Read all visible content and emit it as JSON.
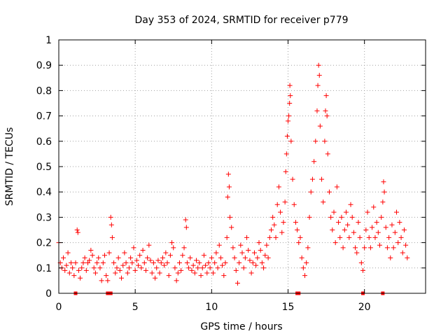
{
  "chart_data": {
    "type": "scatter",
    "title": "Day 353 of 2024, SRMTID for receiver p779",
    "xlabel": "GPS time / hours",
    "ylabel": "SRMTID / TECUs",
    "xlim": [
      0,
      24
    ],
    "ylim": [
      0,
      1
    ],
    "grid": true,
    "x_ticks": [
      0,
      5,
      10,
      15,
      20
    ],
    "y_ticks": [
      0,
      0.1,
      0.2,
      0.3,
      0.4,
      0.5,
      0.6,
      0.7,
      0.8,
      0.9,
      1
    ],
    "x_tick_labels": [
      "0",
      "5",
      "10",
      "15",
      "20"
    ],
    "y_tick_labels": [
      "0",
      "0.1",
      "0.2",
      "0.3",
      "0.4",
      "0.5",
      "0.6",
      "0.7",
      "0.8",
      "0.9",
      "1"
    ],
    "marker": "+",
    "color": "#ff0000",
    "series": [
      {
        "name": "SRMTID",
        "points": [
          [
            0.0,
            0.2
          ],
          [
            0.1,
            0.12
          ],
          [
            0.2,
            0.1
          ],
          [
            0.3,
            0.14
          ],
          [
            0.4,
            0.09
          ],
          [
            0.5,
            0.11
          ],
          [
            0.6,
            0.16
          ],
          [
            0.7,
            0.08
          ],
          [
            0.8,
            0.12
          ],
          [
            0.9,
            0.1
          ],
          [
            1.0,
            0.07
          ],
          [
            1.1,
            0.12
          ],
          [
            1.2,
            0.25
          ],
          [
            1.25,
            0.24
          ],
          [
            1.3,
            0.09
          ],
          [
            1.4,
            0.06
          ],
          [
            1.5,
            0.1
          ],
          [
            1.6,
            0.12
          ],
          [
            1.7,
            0.14
          ],
          [
            1.8,
            0.09
          ],
          [
            1.9,
            0.12
          ],
          [
            2.0,
            0.13
          ],
          [
            2.1,
            0.17
          ],
          [
            2.2,
            0.15
          ],
          [
            2.3,
            0.1
          ],
          [
            2.4,
            0.08
          ],
          [
            2.5,
            0.12
          ],
          [
            2.6,
            0.14
          ],
          [
            2.7,
            0.1
          ],
          [
            2.8,
            0.05
          ],
          [
            2.9,
            0.12
          ],
          [
            3.0,
            0.15
          ],
          [
            3.1,
            0.07
          ],
          [
            3.2,
            0.05
          ],
          [
            3.3,
            0.16
          ],
          [
            3.4,
            0.3
          ],
          [
            3.45,
            0.27
          ],
          [
            3.5,
            0.22
          ],
          [
            3.6,
            0.12
          ],
          [
            3.7,
            0.08
          ],
          [
            3.8,
            0.1
          ],
          [
            3.9,
            0.14
          ],
          [
            4.0,
            0.09
          ],
          [
            4.1,
            0.06
          ],
          [
            4.2,
            0.11
          ],
          [
            4.3,
            0.16
          ],
          [
            4.4,
            0.12
          ],
          [
            4.5,
            0.08
          ],
          [
            4.6,
            0.1
          ],
          [
            4.7,
            0.14
          ],
          [
            4.8,
            0.12
          ],
          [
            4.9,
            0.18
          ],
          [
            5.0,
            0.09
          ],
          [
            5.1,
            0.13
          ],
          [
            5.2,
            0.11
          ],
          [
            5.3,
            0.15
          ],
          [
            5.4,
            0.1
          ],
          [
            5.5,
            0.17
          ],
          [
            5.6,
            0.12
          ],
          [
            5.7,
            0.09
          ],
          [
            5.8,
            0.14
          ],
          [
            5.9,
            0.19
          ],
          [
            6.0,
            0.13
          ],
          [
            6.1,
            0.08
          ],
          [
            6.2,
            0.12
          ],
          [
            6.3,
            0.06
          ],
          [
            6.4,
            0.1
          ],
          [
            6.5,
            0.13
          ],
          [
            6.6,
            0.08
          ],
          [
            6.7,
            0.12
          ],
          [
            6.8,
            0.14
          ],
          [
            6.9,
            0.11
          ],
          [
            7.0,
            0.16
          ],
          [
            7.1,
            0.12
          ],
          [
            7.2,
            0.07
          ],
          [
            7.3,
            0.15
          ],
          [
            7.4,
            0.2
          ],
          [
            7.5,
            0.18
          ],
          [
            7.6,
            0.1
          ],
          [
            7.7,
            0.05
          ],
          [
            7.8,
            0.08
          ],
          [
            7.9,
            0.12
          ],
          [
            8.0,
            0.09
          ],
          [
            8.1,
            0.15
          ],
          [
            8.2,
            0.18
          ],
          [
            8.3,
            0.29
          ],
          [
            8.35,
            0.26
          ],
          [
            8.4,
            0.12
          ],
          [
            8.5,
            0.1
          ],
          [
            8.6,
            0.14
          ],
          [
            8.7,
            0.09
          ],
          [
            8.8,
            0.11
          ],
          [
            8.9,
            0.08
          ],
          [
            9.0,
            0.13
          ],
          [
            9.1,
            0.1
          ],
          [
            9.2,
            0.12
          ],
          [
            9.3,
            0.07
          ],
          [
            9.4,
            0.1
          ],
          [
            9.5,
            0.15
          ],
          [
            9.6,
            0.11
          ],
          [
            9.7,
            0.08
          ],
          [
            9.8,
            0.12
          ],
          [
            9.9,
            0.1
          ],
          [
            10.0,
            0.14
          ],
          [
            10.1,
            0.08
          ],
          [
            10.2,
            0.12
          ],
          [
            10.3,
            0.16
          ],
          [
            10.4,
            0.1
          ],
          [
            10.5,
            0.19
          ],
          [
            10.6,
            0.14
          ],
          [
            10.7,
            0.11
          ],
          [
            10.8,
            0.07
          ],
          [
            10.9,
            0.12
          ],
          [
            11.0,
            0.22
          ],
          [
            11.05,
            0.38
          ],
          [
            11.1,
            0.47
          ],
          [
            11.15,
            0.42
          ],
          [
            11.2,
            0.3
          ],
          [
            11.3,
            0.26
          ],
          [
            11.4,
            0.18
          ],
          [
            11.5,
            0.14
          ],
          [
            11.6,
            0.09
          ],
          [
            11.7,
            0.04
          ],
          [
            11.8,
            0.12
          ],
          [
            11.9,
            0.19
          ],
          [
            12.0,
            0.16
          ],
          [
            12.1,
            0.1
          ],
          [
            12.2,
            0.14
          ],
          [
            12.3,
            0.22
          ],
          [
            12.4,
            0.17
          ],
          [
            12.5,
            0.13
          ],
          [
            12.6,
            0.08
          ],
          [
            12.7,
            0.12
          ],
          [
            12.8,
            0.16
          ],
          [
            12.9,
            0.11
          ],
          [
            13.0,
            0.14
          ],
          [
            13.1,
            0.2
          ],
          [
            13.2,
            0.17
          ],
          [
            13.3,
            0.12
          ],
          [
            13.4,
            0.1
          ],
          [
            13.5,
            0.15
          ],
          [
            13.6,
            0.19
          ],
          [
            13.7,
            0.14
          ],
          [
            13.8,
            0.22
          ],
          [
            13.9,
            0.25
          ],
          [
            14.0,
            0.3
          ],
          [
            14.1,
            0.27
          ],
          [
            14.2,
            0.22
          ],
          [
            14.3,
            0.35
          ],
          [
            14.4,
            0.42
          ],
          [
            14.5,
            0.32
          ],
          [
            14.6,
            0.24
          ],
          [
            14.7,
            0.28
          ],
          [
            14.8,
            0.36
          ],
          [
            14.85,
            0.48
          ],
          [
            14.9,
            0.55
          ],
          [
            14.95,
            0.62
          ],
          [
            15.0,
            0.68
          ],
          [
            15.05,
            0.7
          ],
          [
            15.1,
            0.75
          ],
          [
            15.12,
            0.82
          ],
          [
            15.15,
            0.78
          ],
          [
            15.2,
            0.6
          ],
          [
            15.3,
            0.45
          ],
          [
            15.4,
            0.35
          ],
          [
            15.5,
            0.28
          ],
          [
            15.6,
            0.25
          ],
          [
            15.7,
            0.2
          ],
          [
            15.8,
            0.22
          ],
          [
            15.9,
            0.14
          ],
          [
            16.0,
            0.1
          ],
          [
            16.1,
            0.07
          ],
          [
            16.2,
            0.12
          ],
          [
            16.3,
            0.18
          ],
          [
            16.4,
            0.3
          ],
          [
            16.5,
            0.4
          ],
          [
            16.6,
            0.45
          ],
          [
            16.7,
            0.52
          ],
          [
            16.8,
            0.6
          ],
          [
            16.9,
            0.72
          ],
          [
            16.95,
            0.82
          ],
          [
            17.0,
            0.9
          ],
          [
            17.05,
            0.86
          ],
          [
            17.1,
            0.66
          ],
          [
            17.2,
            0.45
          ],
          [
            17.3,
            0.36
          ],
          [
            17.4,
            0.6
          ],
          [
            17.45,
            0.72
          ],
          [
            17.5,
            0.78
          ],
          [
            17.55,
            0.7
          ],
          [
            17.6,
            0.55
          ],
          [
            17.7,
            0.4
          ],
          [
            17.8,
            0.3
          ],
          [
            17.9,
            0.25
          ],
          [
            18.0,
            0.32
          ],
          [
            18.1,
            0.2
          ],
          [
            18.2,
            0.42
          ],
          [
            18.3,
            0.28
          ],
          [
            18.4,
            0.22
          ],
          [
            18.5,
            0.3
          ],
          [
            18.6,
            0.18
          ],
          [
            18.7,
            0.25
          ],
          [
            18.8,
            0.32
          ],
          [
            18.9,
            0.27
          ],
          [
            19.0,
            0.22
          ],
          [
            19.1,
            0.35
          ],
          [
            19.2,
            0.3
          ],
          [
            19.3,
            0.24
          ],
          [
            19.4,
            0.18
          ],
          [
            19.5,
            0.16
          ],
          [
            19.6,
            0.28
          ],
          [
            19.7,
            0.22
          ],
          [
            19.8,
            0.12
          ],
          [
            19.9,
            0.09
          ],
          [
            20.0,
            0.18
          ],
          [
            20.1,
            0.25
          ],
          [
            20.2,
            0.32
          ],
          [
            20.3,
            0.22
          ],
          [
            20.4,
            0.18
          ],
          [
            20.5,
            0.26
          ],
          [
            20.6,
            0.34
          ],
          [
            20.7,
            0.22
          ],
          [
            20.8,
            0.28
          ],
          [
            20.9,
            0.24
          ],
          [
            21.0,
            0.19
          ],
          [
            21.1,
            0.3
          ],
          [
            21.2,
            0.36
          ],
          [
            21.25,
            0.44
          ],
          [
            21.3,
            0.4
          ],
          [
            21.4,
            0.26
          ],
          [
            21.5,
            0.18
          ],
          [
            21.6,
            0.22
          ],
          [
            21.7,
            0.14
          ],
          [
            21.8,
            0.27
          ],
          [
            21.9,
            0.18
          ],
          [
            22.0,
            0.24
          ],
          [
            22.1,
            0.32
          ],
          [
            22.2,
            0.2
          ],
          [
            22.3,
            0.28
          ],
          [
            22.4,
            0.22
          ],
          [
            22.5,
            0.16
          ],
          [
            22.6,
            0.25
          ],
          [
            22.7,
            0.19
          ],
          [
            22.8,
            0.14
          ]
        ]
      }
    ],
    "zero_markers_x": [
      1.1,
      3.2,
      3.3,
      3.4,
      15.6,
      15.7,
      19.9,
      21.2
    ]
  }
}
